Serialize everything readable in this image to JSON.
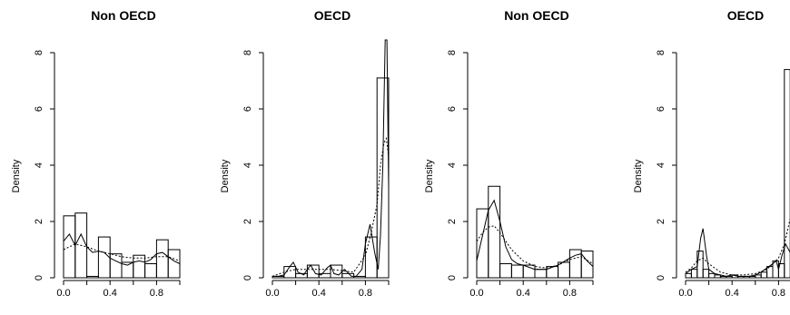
{
  "chart_data": [
    {
      "type": "histogram",
      "title": "Non OECD",
      "xlabel": "",
      "ylabel": "Density",
      "xlim": [
        0,
        1
      ],
      "ylim": [
        0,
        8
      ],
      "x_ticks": [
        "0.0",
        "0.4",
        "0.8"
      ],
      "y_ticks": [
        "0",
        "2",
        "4",
        "6",
        "8"
      ],
      "bin_edges": [
        0,
        0.1,
        0.2,
        0.3,
        0.4,
        0.5,
        0.6,
        0.7,
        0.8,
        0.9,
        1.0
      ],
      "bar_heights": [
        2.2,
        2.3,
        0.05,
        1.45,
        0.85,
        0.55,
        0.8,
        0.5,
        1.35,
        1.0
      ],
      "series": [
        {
          "style": "solid",
          "x": [
            0.0,
            0.05,
            0.1,
            0.15,
            0.2,
            0.25,
            0.3,
            0.35,
            0.4,
            0.45,
            0.5,
            0.55,
            0.6,
            0.65,
            0.7,
            0.75,
            0.8,
            0.85,
            0.9,
            0.95,
            1.0
          ],
          "y": [
            1.3,
            1.55,
            1.15,
            1.55,
            1.1,
            0.9,
            0.95,
            0.9,
            0.7,
            0.6,
            0.5,
            0.45,
            0.55,
            0.6,
            0.55,
            0.65,
            0.85,
            0.9,
            0.75,
            0.6,
            0.5
          ]
        },
        {
          "style": "dotted",
          "x": [
            0.0,
            0.1,
            0.2,
            0.3,
            0.4,
            0.5,
            0.6,
            0.7,
            0.8,
            0.9,
            1.0
          ],
          "y": [
            1.0,
            1.2,
            1.1,
            0.95,
            0.85,
            0.75,
            0.7,
            0.7,
            0.75,
            0.75,
            0.6
          ]
        }
      ]
    },
    {
      "type": "histogram",
      "title": "OECD",
      "xlabel": "",
      "ylabel": "Density",
      "xlim": [
        0,
        1
      ],
      "ylim": [
        0,
        8
      ],
      "x_ticks": [
        "0.0",
        "0.4",
        "0.8"
      ],
      "y_ticks": [
        "0",
        "2",
        "4",
        "6",
        "8"
      ],
      "bin_edges": [
        0,
        0.1,
        0.2,
        0.3,
        0.4,
        0.5,
        0.6,
        0.7,
        0.8,
        0.9,
        1.0
      ],
      "bar_heights": [
        0.05,
        0.4,
        0.15,
        0.45,
        0.15,
        0.45,
        0.15,
        0.05,
        1.45,
        7.1
      ],
      "series": [
        {
          "style": "solid",
          "x": [
            0.0,
            0.05,
            0.1,
            0.15,
            0.18,
            0.22,
            0.27,
            0.3,
            0.33,
            0.37,
            0.42,
            0.47,
            0.5,
            0.53,
            0.57,
            0.62,
            0.68,
            0.72,
            0.77,
            0.8,
            0.84,
            0.88,
            0.91,
            0.93,
            0.95,
            0.97,
            0.985,
            1.0
          ],
          "y": [
            0.05,
            0.05,
            0.1,
            0.4,
            0.55,
            0.2,
            0.1,
            0.3,
            0.45,
            0.15,
            0.1,
            0.35,
            0.45,
            0.15,
            0.1,
            0.3,
            0.05,
            0.05,
            0.3,
            1.2,
            1.9,
            0.9,
            0.3,
            1.5,
            4.0,
            8.5,
            8.5,
            3.2
          ]
        },
        {
          "style": "dotted",
          "x": [
            0.0,
            0.1,
            0.2,
            0.3,
            0.4,
            0.5,
            0.6,
            0.7,
            0.8,
            0.85,
            0.9,
            0.93,
            0.96,
            0.98,
            1.0
          ],
          "y": [
            0.05,
            0.2,
            0.3,
            0.3,
            0.3,
            0.3,
            0.25,
            0.2,
            0.8,
            1.6,
            2.6,
            4.0,
            4.8,
            4.95,
            4.3
          ]
        }
      ]
    },
    {
      "type": "histogram",
      "title": "Non OECD",
      "xlabel": "",
      "ylabel": "Density",
      "xlim": [
        0,
        1
      ],
      "ylim": [
        0,
        8
      ],
      "x_ticks": [
        "0.0",
        "0.4",
        "0.8"
      ],
      "y_ticks": [
        "0",
        "2",
        "4",
        "6",
        "8"
      ],
      "bin_edges": [
        0,
        0.1,
        0.2,
        0.3,
        0.4,
        0.5,
        0.6,
        0.7,
        0.8,
        0.9,
        1.0
      ],
      "bar_heights": [
        2.45,
        3.25,
        0.5,
        0.45,
        0.45,
        0.3,
        0.4,
        0.55,
        1.0,
        0.95
      ],
      "series": [
        {
          "style": "solid",
          "x": [
            0.0,
            0.05,
            0.1,
            0.15,
            0.2,
            0.25,
            0.3,
            0.35,
            0.4,
            0.5,
            0.6,
            0.7,
            0.8,
            0.85,
            0.9,
            0.95,
            1.0
          ],
          "y": [
            0.6,
            1.5,
            2.4,
            2.75,
            2.0,
            1.1,
            0.65,
            0.5,
            0.45,
            0.3,
            0.3,
            0.45,
            0.7,
            0.8,
            0.85,
            0.6,
            0.4
          ]
        },
        {
          "style": "dotted",
          "x": [
            0.0,
            0.05,
            0.1,
            0.15,
            0.2,
            0.3,
            0.4,
            0.5,
            0.6,
            0.7,
            0.8,
            0.9,
            1.0
          ],
          "y": [
            1.3,
            1.6,
            1.8,
            1.85,
            1.6,
            1.0,
            0.6,
            0.4,
            0.35,
            0.45,
            0.65,
            0.75,
            0.5
          ]
        }
      ]
    },
    {
      "type": "histogram",
      "title": "OECD",
      "xlabel": "",
      "ylabel": "Density",
      "xlim": [
        0,
        1
      ],
      "ylim": [
        0,
        8
      ],
      "x_ticks": [
        "0.0",
        "0.4",
        "0.8"
      ],
      "y_ticks": [
        "0",
        "2",
        "4",
        "6",
        "8"
      ],
      "bin_edges": [
        0,
        0.05,
        0.1,
        0.15,
        0.2,
        0.25,
        0.3,
        0.35,
        0.4,
        0.45,
        0.5,
        0.55,
        0.6,
        0.65,
        0.7,
        0.75,
        0.8,
        0.85,
        0.9
      ],
      "bar_heights": [
        0.15,
        0.3,
        0.95,
        0.3,
        0.15,
        0.1,
        0.05,
        0.05,
        0.1,
        0.05,
        0.05,
        0.05,
        0.1,
        0.2,
        0.4,
        0.6,
        0.5,
        7.4
      ],
      "series": [
        {
          "style": "solid",
          "x": [
            0.0,
            0.05,
            0.1,
            0.13,
            0.15,
            0.18,
            0.2,
            0.25,
            0.3,
            0.35,
            0.4,
            0.45,
            0.5,
            0.55,
            0.6,
            0.65,
            0.7,
            0.75,
            0.78,
            0.8,
            0.83,
            0.86,
            0.9
          ],
          "y": [
            0.15,
            0.3,
            0.4,
            1.4,
            1.75,
            0.8,
            0.3,
            0.15,
            0.1,
            0.05,
            0.1,
            0.05,
            0.05,
            0.05,
            0.1,
            0.2,
            0.35,
            0.5,
            0.6,
            0.3,
            0.8,
            1.2,
            0.9
          ]
        },
        {
          "style": "dotted",
          "x": [
            0.0,
            0.05,
            0.1,
            0.15,
            0.2,
            0.3,
            0.4,
            0.5,
            0.6,
            0.7,
            0.75,
            0.8,
            0.85,
            0.9
          ],
          "y": [
            0.2,
            0.35,
            0.6,
            0.7,
            0.5,
            0.2,
            0.1,
            0.1,
            0.15,
            0.3,
            0.5,
            0.7,
            1.2,
            2.1
          ]
        }
      ]
    }
  ]
}
